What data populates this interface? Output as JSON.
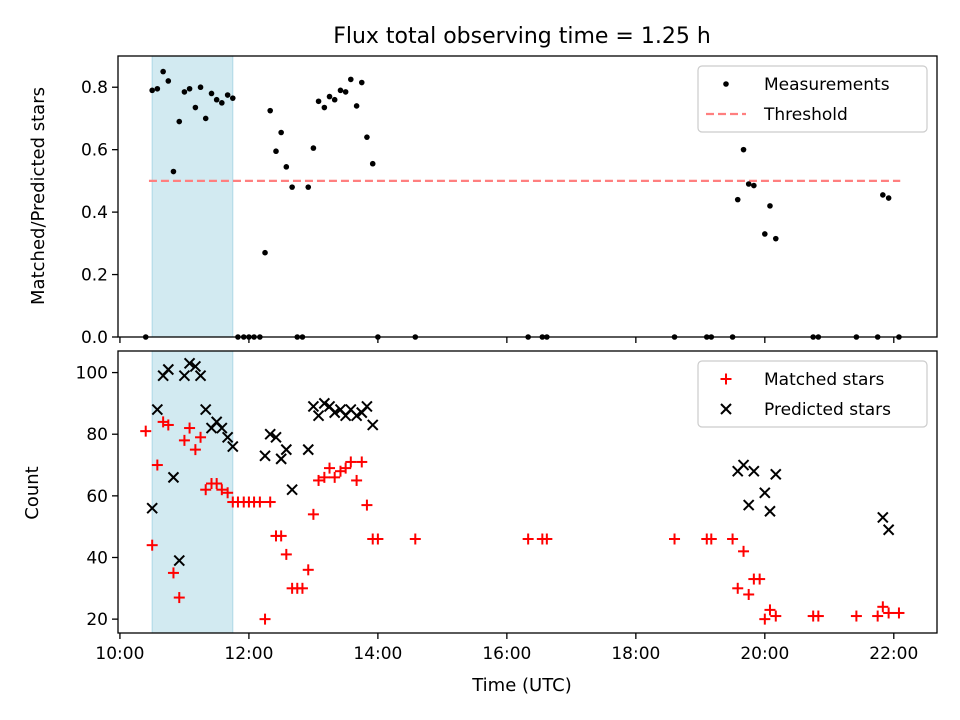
{
  "title": "Flux total observing time = 1.25 h",
  "colors": {
    "measurement": "#000000",
    "threshold": "#ff7f7f",
    "matched": "#ff0000",
    "predicted": "#000000",
    "shade": "#add8e6"
  },
  "chart_data": [
    {
      "type": "scatter",
      "title": "Flux total observing time = 1.25 h",
      "xlabel": "",
      "ylabel": "Matched/Predicted stars",
      "x_unit": "hours UTC",
      "xlim": [
        9.97,
        22.67
      ],
      "ylim": [
        0,
        0.9
      ],
      "yticks": [
        0.0,
        0.2,
        0.4,
        0.6,
        0.8
      ],
      "ytick_labels": [
        "0.0",
        "0.2",
        "0.4",
        "0.6",
        "0.8"
      ],
      "shaded_span": [
        10.5,
        11.75
      ],
      "legend": {
        "position": "top-right",
        "entries": [
          "Measurements",
          "Threshold"
        ]
      },
      "threshold": {
        "name": "Threshold",
        "value": 0.5,
        "x_range": [
          10.45,
          22.1
        ]
      },
      "series": [
        {
          "name": "Measurements",
          "points": [
            [
              10.4,
              0.0
            ],
            [
              10.5,
              0.79
            ],
            [
              10.58,
              0.795
            ],
            [
              10.67,
              0.85
            ],
            [
              10.75,
              0.82
            ],
            [
              10.83,
              0.53
            ],
            [
              10.92,
              0.69
            ],
            [
              11.0,
              0.785
            ],
            [
              11.08,
              0.795
            ],
            [
              11.17,
              0.735
            ],
            [
              11.25,
              0.8
            ],
            [
              11.33,
              0.7
            ],
            [
              11.42,
              0.78
            ],
            [
              11.5,
              0.76
            ],
            [
              11.58,
              0.75
            ],
            [
              11.67,
              0.775
            ],
            [
              11.75,
              0.765
            ],
            [
              11.83,
              0.0
            ],
            [
              11.92,
              0.0
            ],
            [
              12.0,
              0.0
            ],
            [
              12.08,
              0.0
            ],
            [
              12.17,
              0.0
            ],
            [
              12.25,
              0.27
            ],
            [
              12.33,
              0.725
            ],
            [
              12.42,
              0.595
            ],
            [
              12.5,
              0.655
            ],
            [
              12.58,
              0.545
            ],
            [
              12.67,
              0.48
            ],
            [
              12.75,
              0.0
            ],
            [
              12.83,
              0.0
            ],
            [
              12.92,
              0.48
            ],
            [
              13.0,
              0.605
            ],
            [
              13.08,
              0.755
            ],
            [
              13.17,
              0.735
            ],
            [
              13.25,
              0.77
            ],
            [
              13.33,
              0.76
            ],
            [
              13.42,
              0.79
            ],
            [
              13.5,
              0.785
            ],
            [
              13.58,
              0.825
            ],
            [
              13.67,
              0.74
            ],
            [
              13.75,
              0.815
            ],
            [
              13.83,
              0.64
            ],
            [
              13.92,
              0.555
            ],
            [
              14.0,
              0.0
            ],
            [
              14.58,
              0.0
            ],
            [
              16.33,
              0.0
            ],
            [
              16.55,
              0.0
            ],
            [
              16.62,
              0.0
            ],
            [
              18.6,
              0.0
            ],
            [
              19.1,
              0.0
            ],
            [
              19.17,
              0.0
            ],
            [
              19.5,
              0.0
            ],
            [
              19.58,
              0.44
            ],
            [
              19.67,
              0.6
            ],
            [
              19.75,
              0.49
            ],
            [
              19.83,
              0.485
            ],
            [
              20.0,
              0.33
            ],
            [
              20.08,
              0.42
            ],
            [
              20.17,
              0.315
            ],
            [
              20.75,
              0.0
            ],
            [
              20.83,
              0.0
            ],
            [
              21.42,
              0.0
            ],
            [
              21.75,
              0.0
            ],
            [
              21.83,
              0.455
            ],
            [
              21.92,
              0.445
            ],
            [
              22.08,
              0.0
            ]
          ]
        }
      ]
    },
    {
      "type": "scatter",
      "title": "",
      "xlabel": "Time (UTC)",
      "ylabel": "Count",
      "x_unit": "hours UTC",
      "xlim": [
        9.97,
        22.67
      ],
      "ylim": [
        15.5,
        107
      ],
      "xticks": [
        10,
        12,
        14,
        16,
        18,
        20,
        22
      ],
      "xtick_labels": [
        "10:00",
        "12:00",
        "14:00",
        "16:00",
        "18:00",
        "20:00",
        "22:00"
      ],
      "yticks": [
        20,
        40,
        60,
        80,
        100
      ],
      "ytick_labels": [
        "20",
        "40",
        "60",
        "80",
        "100"
      ],
      "shaded_span": [
        10.5,
        11.75
      ],
      "legend": {
        "position": "top-right",
        "entries": [
          "Matched stars",
          "Predicted stars"
        ]
      },
      "series": [
        {
          "name": "Matched stars",
          "marker": "+",
          "points": [
            [
              10.4,
              81
            ],
            [
              10.5,
              44
            ],
            [
              10.58,
              70
            ],
            [
              10.67,
              84
            ],
            [
              10.75,
              83
            ],
            [
              10.83,
              35
            ],
            [
              10.92,
              27
            ],
            [
              11.0,
              78
            ],
            [
              11.08,
              82
            ],
            [
              11.17,
              75
            ],
            [
              11.25,
              79
            ],
            [
              11.33,
              62
            ],
            [
              11.42,
              64
            ],
            [
              11.5,
              64
            ],
            [
              11.58,
              62
            ],
            [
              11.67,
              61
            ],
            [
              11.75,
              58
            ],
            [
              11.83,
              58
            ],
            [
              11.92,
              58
            ],
            [
              12.0,
              58
            ],
            [
              12.08,
              58
            ],
            [
              12.17,
              58
            ],
            [
              12.25,
              20
            ],
            [
              12.33,
              58
            ],
            [
              12.42,
              47
            ],
            [
              12.5,
              47
            ],
            [
              12.58,
              41
            ],
            [
              12.67,
              30
            ],
            [
              12.75,
              30
            ],
            [
              12.83,
              30
            ],
            [
              12.92,
              36
            ],
            [
              13.0,
              54
            ],
            [
              13.08,
              65
            ],
            [
              13.17,
              66
            ],
            [
              13.25,
              69
            ],
            [
              13.33,
              66
            ],
            [
              13.42,
              68
            ],
            [
              13.5,
              69
            ],
            [
              13.58,
              71
            ],
            [
              13.67,
              65
            ],
            [
              13.75,
              71
            ],
            [
              13.83,
              57
            ],
            [
              13.92,
              46
            ],
            [
              14.0,
              46
            ],
            [
              14.58,
              46
            ],
            [
              16.33,
              46
            ],
            [
              16.55,
              46
            ],
            [
              16.62,
              46
            ],
            [
              18.6,
              46
            ],
            [
              19.1,
              46
            ],
            [
              19.17,
              46
            ],
            [
              19.5,
              46
            ],
            [
              19.58,
              30
            ],
            [
              19.67,
              42
            ],
            [
              19.75,
              28
            ],
            [
              19.83,
              33
            ],
            [
              19.92,
              33
            ],
            [
              20.0,
              20
            ],
            [
              20.08,
              23
            ],
            [
              20.17,
              21
            ],
            [
              20.75,
              21
            ],
            [
              20.83,
              21
            ],
            [
              21.42,
              21
            ],
            [
              21.75,
              21
            ],
            [
              21.83,
              24
            ],
            [
              21.92,
              22
            ],
            [
              22.08,
              22
            ]
          ]
        },
        {
          "name": "Predicted stars",
          "marker": "x",
          "points": [
            [
              10.5,
              56
            ],
            [
              10.58,
              88
            ],
            [
              10.67,
              99
            ],
            [
              10.75,
              101
            ],
            [
              10.83,
              66
            ],
            [
              10.92,
              39
            ],
            [
              11.0,
              99
            ],
            [
              11.08,
              103
            ],
            [
              11.17,
              102
            ],
            [
              11.25,
              99
            ],
            [
              11.33,
              88
            ],
            [
              11.42,
              82
            ],
            [
              11.5,
              84
            ],
            [
              11.58,
              82
            ],
            [
              11.67,
              79
            ],
            [
              11.75,
              76
            ],
            [
              12.25,
              73
            ],
            [
              12.33,
              80
            ],
            [
              12.42,
              79
            ],
            [
              12.5,
              72
            ],
            [
              12.58,
              75
            ],
            [
              12.67,
              62
            ],
            [
              12.92,
              75
            ],
            [
              13.0,
              89
            ],
            [
              13.08,
              86
            ],
            [
              13.17,
              90
            ],
            [
              13.25,
              89
            ],
            [
              13.33,
              87
            ],
            [
              13.42,
              88
            ],
            [
              13.5,
              86
            ],
            [
              13.58,
              88
            ],
            [
              13.67,
              86
            ],
            [
              13.75,
              87
            ],
            [
              13.83,
              89
            ],
            [
              13.92,
              83
            ],
            [
              19.58,
              68
            ],
            [
              19.67,
              70
            ],
            [
              19.75,
              57
            ],
            [
              19.83,
              68
            ],
            [
              20.0,
              61
            ],
            [
              20.08,
              55
            ],
            [
              20.17,
              67
            ],
            [
              21.83,
              53
            ],
            [
              21.92,
              49
            ]
          ]
        }
      ]
    }
  ]
}
